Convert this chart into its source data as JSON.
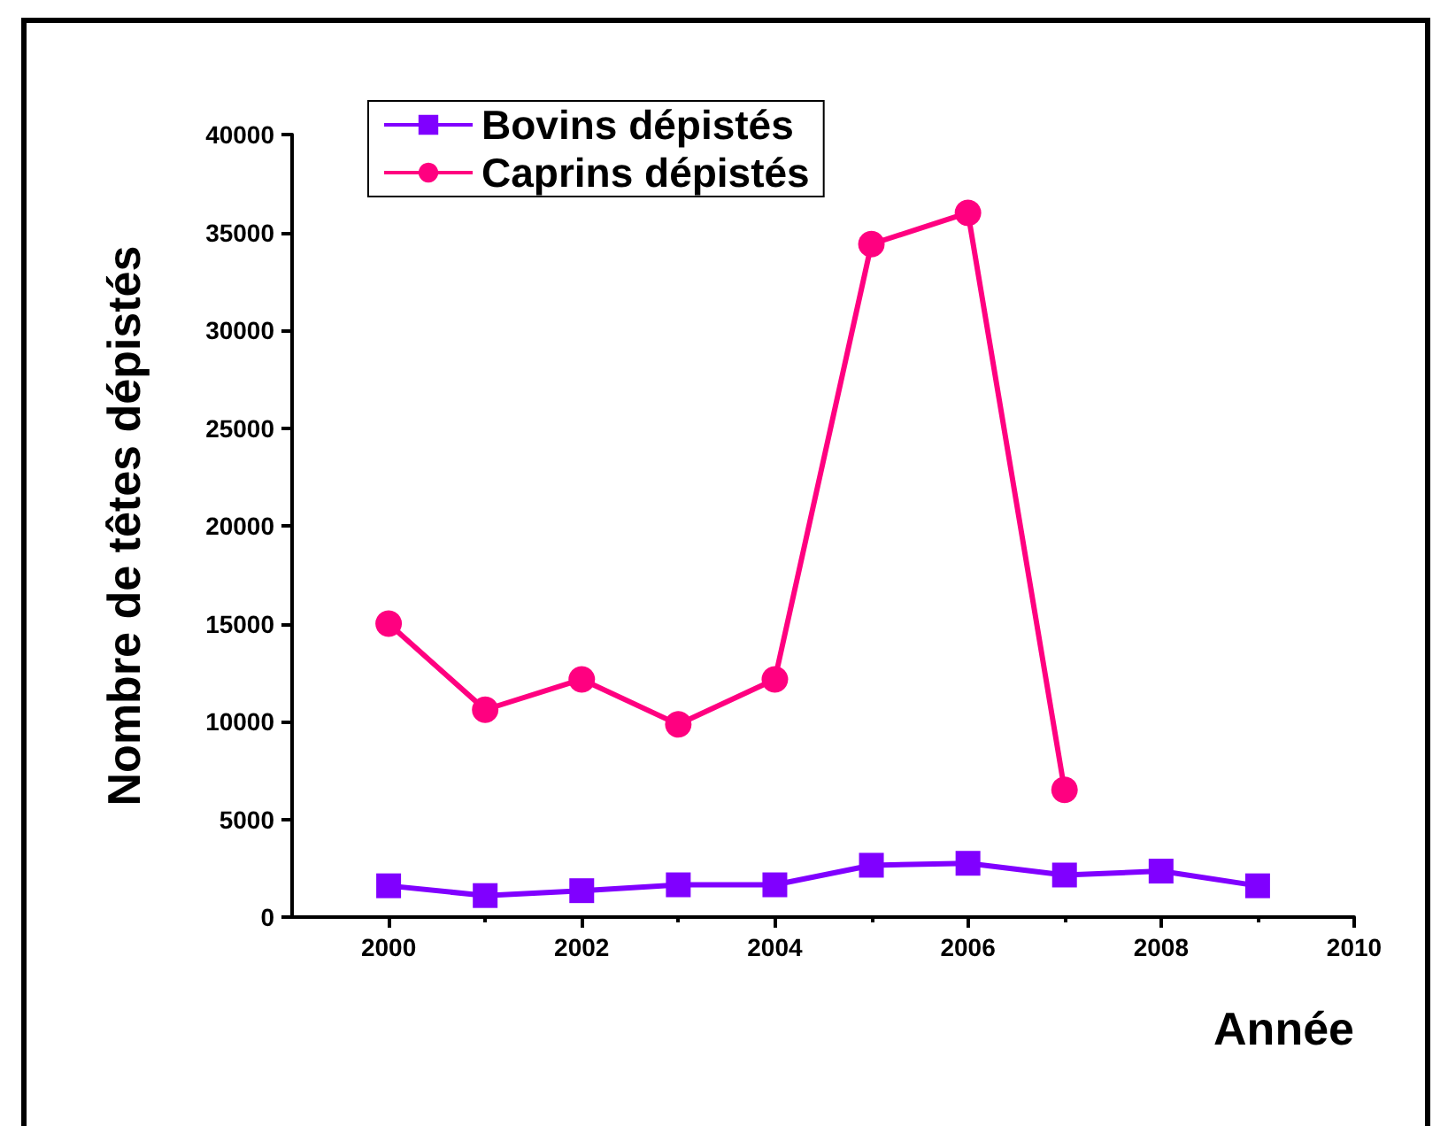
{
  "chart_data": {
    "type": "line",
    "xlabel": "Année",
    "ylabel": "Nombre de têtes dépistés",
    "x": [
      2000,
      2001,
      2002,
      2003,
      2004,
      2005,
      2006,
      2007,
      2008,
      2009
    ],
    "series": [
      {
        "name": "Bovins dépistés",
        "color": "#8000ff",
        "marker": "square",
        "values": [
          1600,
          1100,
          1350,
          1650,
          1650,
          2650,
          2750,
          2150,
          2350,
          1600
        ]
      },
      {
        "name": "Caprins dépistés",
        "color": "#ff0080",
        "marker": "circle",
        "values": [
          15000,
          10600,
          12150,
          9850,
          12150,
          34400,
          36000,
          6500,
          null,
          null
        ]
      }
    ],
    "xlim": [
      1999,
      2010
    ],
    "xticks": [
      2000,
      2002,
      2004,
      2006,
      2008,
      2010
    ],
    "ylim": [
      0,
      40000
    ],
    "yticks": [
      0,
      5000,
      10000,
      15000,
      20000,
      25000,
      30000,
      35000,
      40000
    ],
    "grid": false,
    "legend": "top left",
    "line_style": "solid"
  }
}
